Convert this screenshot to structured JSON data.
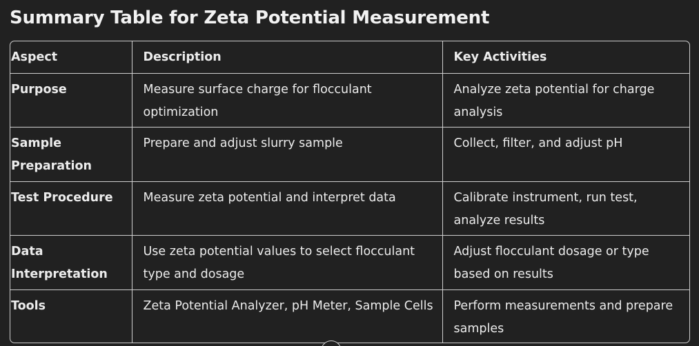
{
  "title": "Summary Table for Zeta Potential Measurement",
  "table": {
    "headers": [
      "Aspect",
      "Description",
      "Key Activities"
    ],
    "rows": [
      {
        "aspect": "Purpose",
        "description": "Measure surface charge for flocculant optimization",
        "activities": "Analyze zeta potential for charge analysis"
      },
      {
        "aspect": "Sample Preparation",
        "description": "Prepare and adjust slurry sample",
        "activities": "Collect, filter, and adjust pH"
      },
      {
        "aspect": "Test Procedure",
        "description": "Measure zeta potential and interpret data",
        "activities": "Calibrate instrument, run test, analyze results"
      },
      {
        "aspect": "Data Interpretation",
        "description": "Use zeta potential values to select flocculant type and dosage",
        "activities": "Adjust flocculant dosage or type based on results"
      },
      {
        "aspect": "Tools",
        "description": "Zeta Potential Analyzer, pH Meter, Sample Cells",
        "activities": "Perform measurements and prepare samples"
      }
    ]
  }
}
